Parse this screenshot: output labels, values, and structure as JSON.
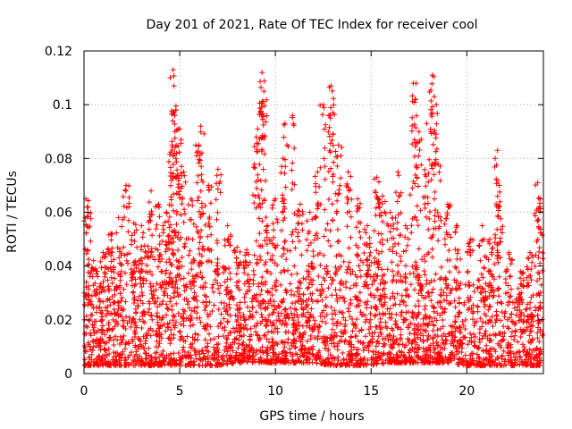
{
  "chart_data": {
    "type": "scatter",
    "title": "Day 201 of 2021, Rate Of TEC Index for receiver cool",
    "xlabel": "GPS time / hours",
    "ylabel": "ROTI / TECUs",
    "xlim": [
      0,
      24
    ],
    "ylim": [
      0,
      0.12
    ],
    "xticks": [
      0,
      5,
      10,
      15,
      20
    ],
    "xtick_labels": [
      "0",
      "5",
      "10",
      "15",
      "20"
    ],
    "yticks": [
      0,
      0.02,
      0.04,
      0.06,
      0.08,
      0.1,
      0.12
    ],
    "ytick_labels": [
      "0",
      "0.02",
      "0.04",
      "0.06",
      "0.08",
      "0.1",
      "0.12"
    ],
    "grid": true,
    "marker": "+",
    "series_color": "#ff0000",
    "baseline": {
      "x": [
        0,
        1,
        2,
        3,
        4,
        5,
        6,
        7,
        8,
        9,
        10,
        11,
        12,
        13,
        14,
        15,
        16,
        17,
        18,
        19,
        20,
        21,
        22,
        23,
        24
      ],
      "low": [
        0.003,
        0.003,
        0.003,
        0.003,
        0.003,
        0.003,
        0.003,
        0.003,
        0.004,
        0.004,
        0.004,
        0.004,
        0.004,
        0.003,
        0.003,
        0.003,
        0.004,
        0.004,
        0.004,
        0.004,
        0.003,
        0.003,
        0.003,
        0.003,
        0.003
      ],
      "high": [
        0.035,
        0.04,
        0.045,
        0.045,
        0.05,
        0.055,
        0.05,
        0.045,
        0.025,
        0.035,
        0.035,
        0.03,
        0.045,
        0.045,
        0.04,
        0.045,
        0.04,
        0.04,
        0.04,
        0.035,
        0.035,
        0.035,
        0.03,
        0.03,
        0.03
      ]
    },
    "peaks": [
      {
        "x": 0.1,
        "y": 0.065
      },
      {
        "x": 0.2,
        "y": 0.06
      },
      {
        "x": 0.5,
        "y": 0.042
      },
      {
        "x": 1.0,
        "y": 0.045
      },
      {
        "x": 1.4,
        "y": 0.052
      },
      {
        "x": 1.8,
        "y": 0.058
      },
      {
        "x": 2.2,
        "y": 0.07
      },
      {
        "x": 2.6,
        "y": 0.056
      },
      {
        "x": 3.0,
        "y": 0.055
      },
      {
        "x": 3.5,
        "y": 0.068
      },
      {
        "x": 3.9,
        "y": 0.063
      },
      {
        "x": 4.3,
        "y": 0.06
      },
      {
        "x": 4.6,
        "y": 0.085
      },
      {
        "x": 4.65,
        "y": 0.113
      },
      {
        "x": 4.7,
        "y": 0.107
      },
      {
        "x": 4.8,
        "y": 0.098
      },
      {
        "x": 5.0,
        "y": 0.091
      },
      {
        "x": 5.2,
        "y": 0.075
      },
      {
        "x": 5.6,
        "y": 0.065
      },
      {
        "x": 6.0,
        "y": 0.085
      },
      {
        "x": 6.1,
        "y": 0.092
      },
      {
        "x": 6.5,
        "y": 0.07
      },
      {
        "x": 7.0,
        "y": 0.076
      },
      {
        "x": 7.5,
        "y": 0.055
      },
      {
        "x": 8.0,
        "y": 0.047
      },
      {
        "x": 8.5,
        "y": 0.046
      },
      {
        "x": 9.0,
        "y": 0.088
      },
      {
        "x": 9.2,
        "y": 0.097
      },
      {
        "x": 9.3,
        "y": 0.112
      },
      {
        "x": 9.4,
        "y": 0.105
      },
      {
        "x": 9.6,
        "y": 0.055
      },
      {
        "x": 10.0,
        "y": 0.065
      },
      {
        "x": 10.4,
        "y": 0.08
      },
      {
        "x": 10.5,
        "y": 0.093
      },
      {
        "x": 10.9,
        "y": 0.096
      },
      {
        "x": 11.3,
        "y": 0.063
      },
      {
        "x": 11.8,
        "y": 0.06
      },
      {
        "x": 12.2,
        "y": 0.075
      },
      {
        "x": 12.5,
        "y": 0.1
      },
      {
        "x": 12.9,
        "y": 0.107
      },
      {
        "x": 13.0,
        "y": 0.097
      },
      {
        "x": 13.3,
        "y": 0.085
      },
      {
        "x": 13.8,
        "y": 0.075
      },
      {
        "x": 14.3,
        "y": 0.065
      },
      {
        "x": 14.8,
        "y": 0.055
      },
      {
        "x": 15.3,
        "y": 0.073
      },
      {
        "x": 15.6,
        "y": 0.066
      },
      {
        "x": 16.0,
        "y": 0.06
      },
      {
        "x": 16.4,
        "y": 0.075
      },
      {
        "x": 16.8,
        "y": 0.055
      },
      {
        "x": 17.2,
        "y": 0.108
      },
      {
        "x": 17.3,
        "y": 0.102
      },
      {
        "x": 17.5,
        "y": 0.09
      },
      {
        "x": 17.9,
        "y": 0.093
      },
      {
        "x": 18.2,
        "y": 0.111
      },
      {
        "x": 18.3,
        "y": 0.103
      },
      {
        "x": 18.5,
        "y": 0.078
      },
      {
        "x": 19.0,
        "y": 0.063
      },
      {
        "x": 19.5,
        "y": 0.055
      },
      {
        "x": 20.2,
        "y": 0.05
      },
      {
        "x": 20.8,
        "y": 0.055
      },
      {
        "x": 21.2,
        "y": 0.05
      },
      {
        "x": 21.6,
        "y": 0.083
      },
      {
        "x": 21.7,
        "y": 0.07
      },
      {
        "x": 22.2,
        "y": 0.045
      },
      {
        "x": 22.8,
        "y": 0.038
      },
      {
        "x": 23.3,
        "y": 0.045
      },
      {
        "x": 23.7,
        "y": 0.071
      },
      {
        "x": 23.8,
        "y": 0.062
      }
    ]
  }
}
